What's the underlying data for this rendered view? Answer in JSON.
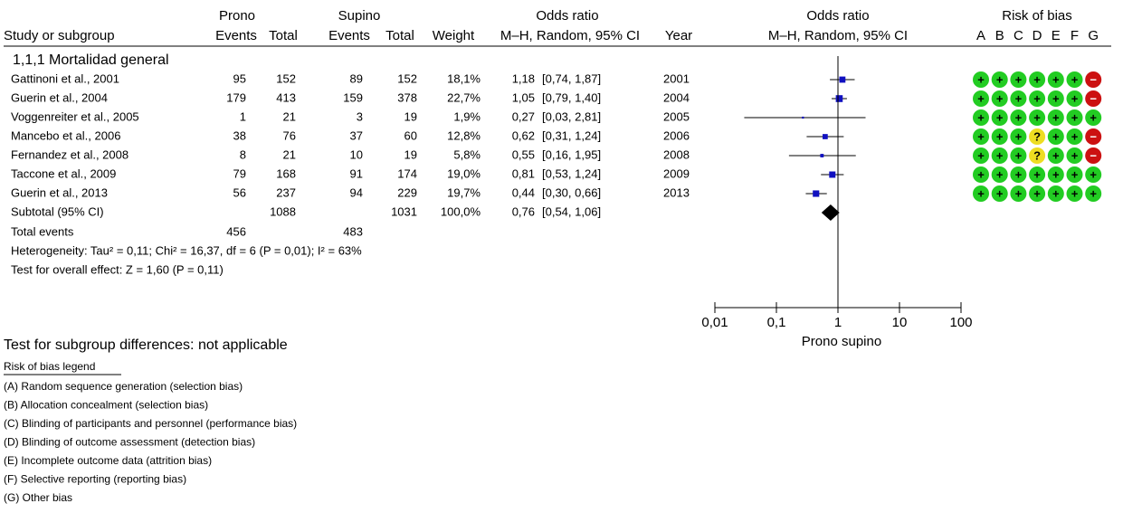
{
  "chart_data": {
    "type": "forest",
    "headers": {
      "prono": "Prono",
      "supino": "Supino",
      "study": "Study or subgroup",
      "events": "Events",
      "total": "Total",
      "weight": "Weight",
      "odds_ratio": "Odds ratio",
      "method": "M–H, Random, 95% CI",
      "year": "Year",
      "risk_of_bias": "Risk of bias",
      "bias_domains": [
        "A",
        "B",
        "C",
        "D",
        "E",
        "F",
        "G"
      ]
    },
    "subgroup": "1,1,1 Mortalidad general",
    "studies": [
      {
        "name": "Gattinoni et al., 2001",
        "prono_events": 95,
        "prono_total": 152,
        "supino_events": 89,
        "supino_total": 152,
        "weight": 18.1,
        "weight_label": "18,1%",
        "or": 1.18,
        "or_label": "1,18",
        "ci": [
          0.74,
          1.87
        ],
        "ci_label": "[0,74, 1,87]",
        "year": 2001,
        "bias": [
          "+",
          "+",
          "+",
          "+",
          "+",
          "+",
          "−"
        ]
      },
      {
        "name": "Guerin et al., 2004",
        "prono_events": 179,
        "prono_total": 413,
        "supino_events": 159,
        "supino_total": 378,
        "weight": 22.7,
        "weight_label": "22,7%",
        "or": 1.05,
        "or_label": "1,05",
        "ci": [
          0.79,
          1.4
        ],
        "ci_label": "[0,79, 1,40]",
        "year": 2004,
        "bias": [
          "+",
          "+",
          "+",
          "+",
          "+",
          "+",
          "−"
        ]
      },
      {
        "name": "Voggenreiter et al., 2005",
        "prono_events": 1,
        "prono_total": 21,
        "supino_events": 3,
        "supino_total": 19,
        "weight": 1.9,
        "weight_label": "1,9%",
        "or": 0.27,
        "or_label": "0,27",
        "ci": [
          0.03,
          2.81
        ],
        "ci_label": "[0,03, 2,81]",
        "year": 2005,
        "bias": [
          "+",
          "+",
          "+",
          "+",
          "+",
          "+",
          "+"
        ]
      },
      {
        "name": "Mancebo et al., 2006",
        "prono_events": 38,
        "prono_total": 76,
        "supino_events": 37,
        "supino_total": 60,
        "weight": 12.8,
        "weight_label": "12,8%",
        "or": 0.62,
        "or_label": "0,62",
        "ci": [
          0.31,
          1.24
        ],
        "ci_label": "[0,31, 1,24]",
        "year": 2006,
        "bias": [
          "+",
          "+",
          "+",
          "?",
          "+",
          "+",
          "−"
        ]
      },
      {
        "name": "Fernandez et al., 2008",
        "prono_events": 8,
        "prono_total": 21,
        "supino_events": 10,
        "supino_total": 19,
        "weight": 5.8,
        "weight_label": "5,8%",
        "or": 0.55,
        "or_label": "0,55",
        "ci": [
          0.16,
          1.95
        ],
        "ci_label": "[0,16, 1,95]",
        "year": 2008,
        "bias": [
          "+",
          "+",
          "+",
          "?",
          "+",
          "+",
          "−"
        ]
      },
      {
        "name": "Taccone et al., 2009",
        "prono_events": 79,
        "prono_total": 168,
        "supino_events": 91,
        "supino_total": 174,
        "weight": 19.0,
        "weight_label": "19,0%",
        "or": 0.81,
        "or_label": "0,81",
        "ci": [
          0.53,
          1.24
        ],
        "ci_label": "[0,53, 1,24]",
        "year": 2009,
        "bias": [
          "+",
          "+",
          "+",
          "+",
          "+",
          "+",
          "+"
        ]
      },
      {
        "name": "Guerin et al., 2013",
        "prono_events": 56,
        "prono_total": 237,
        "supino_events": 94,
        "supino_total": 229,
        "weight": 19.7,
        "weight_label": "19,7%",
        "or": 0.44,
        "or_label": "0,44",
        "ci": [
          0.3,
          0.66
        ],
        "ci_label": "[0,30, 0,66]",
        "year": 2013,
        "bias": [
          "+",
          "+",
          "+",
          "+",
          "+",
          "+",
          "+"
        ]
      }
    ],
    "subtotal": {
      "name": "Subtotal (95% CI)",
      "prono_total": 1088,
      "supino_total": 1031,
      "weight": 100.0,
      "weight_label": "100,0%",
      "or": 0.76,
      "or_label": "0,76",
      "ci": [
        0.54,
        1.06
      ],
      "ci_label": "[0,54, 1,06]"
    },
    "total_events": {
      "name": "Total events",
      "prono": 456,
      "supino": 483
    },
    "heterogeneity": "Heterogeneity: Tau² = 0,11; Chi² = 16,37, df = 6 (P = 0,01); I² = 63%",
    "overall_effect": "Test for overall effect: Z = 1,60 (P = 0,11)",
    "subgroup_test": "Test for subgroup differences: not applicable",
    "xlabel": "Prono supino",
    "xscale": "log",
    "xlim": [
      0.01,
      100
    ],
    "xticks": [
      {
        "value": 0.01,
        "label": "0,01"
      },
      {
        "value": 0.1,
        "label": "0,1"
      },
      1,
      10,
      100
    ],
    "study_color": "#1010c0",
    "bias_colors": {
      "+": "#22cc22",
      "?": "#eedd22",
      "−": "#cc1111"
    },
    "legend_title": "Risk of bias legend",
    "legend_items": [
      "(A) Random sequence generation (selection bias)",
      "(B) Allocation concealment (selection bias)",
      "(C) Blinding of participants and personnel (performance bias)",
      "(D) Blinding of outcome assessment (detection bias)",
      "(E) Incomplete outcome data (attrition bias)",
      "(F) Selective reporting (reporting bias)",
      "(G) Other bias"
    ]
  }
}
